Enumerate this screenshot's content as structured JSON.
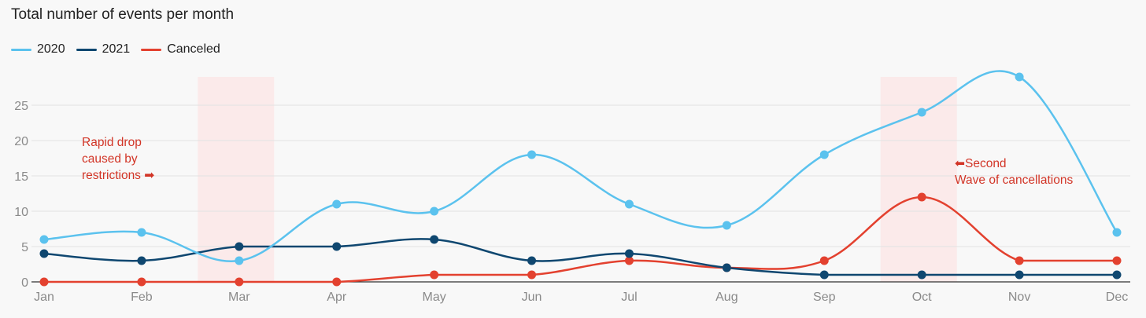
{
  "chart_data": {
    "type": "line",
    "title": "Total number of events per month",
    "categories": [
      "Jan",
      "Feb",
      "Mar",
      "Apr",
      "May",
      "Jun",
      "Jul",
      "Aug",
      "Sep",
      "Oct",
      "Nov",
      "Dec"
    ],
    "ylim": [
      0,
      29
    ],
    "yticks": [
      0,
      5,
      10,
      15,
      20,
      25
    ],
    "grid": true,
    "legend_position": "top-left",
    "series": [
      {
        "name": "2020",
        "color": "#5bc2ee",
        "values": [
          6,
          7,
          3,
          11,
          10,
          18,
          11,
          8,
          18,
          24,
          29,
          7
        ]
      },
      {
        "name": "2021",
        "color": "#0f4770",
        "values": [
          4,
          3,
          5,
          5,
          6,
          3,
          4,
          2,
          1,
          1,
          1,
          1
        ]
      },
      {
        "name": "Canceled",
        "color": "#e3412f",
        "values": [
          0,
          0,
          0,
          0,
          1,
          1,
          3,
          2,
          3,
          12,
          3,
          3
        ]
      }
    ],
    "highlight_bands": [
      {
        "around_month": "Mar",
        "color": "#fbeaea"
      },
      {
        "around_month": "Oct",
        "color": "#fbeaea"
      }
    ],
    "annotations": [
      {
        "lines": [
          "Rapid drop",
          "caused by",
          "restrictions ➡"
        ],
        "near": "Mar"
      },
      {
        "lines": [
          "⬅Second",
          "Wave of cancellations"
        ],
        "near": "Oct"
      }
    ]
  }
}
